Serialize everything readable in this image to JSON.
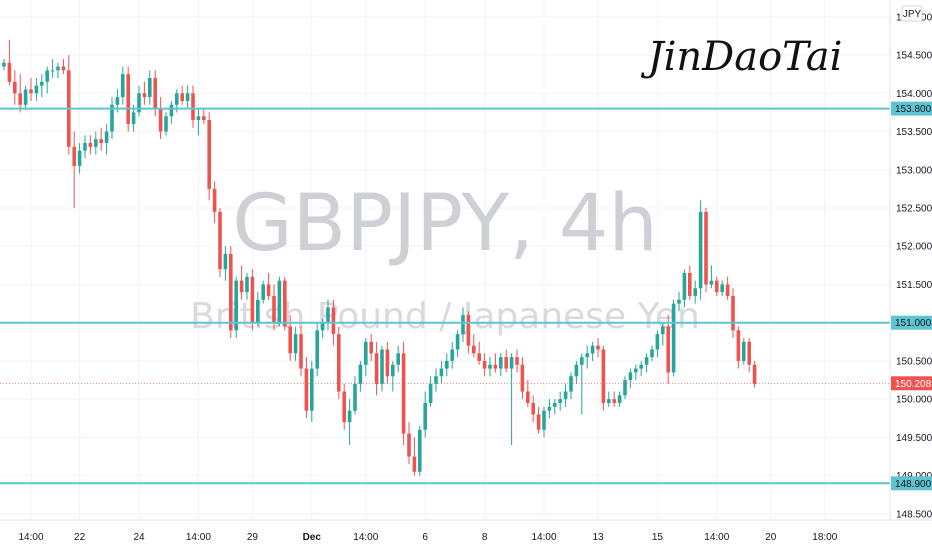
{
  "watermark": {
    "symbol": "GBPJPY, 4h",
    "description": "British Pound / Japanese Yen"
  },
  "signature": "JinDaoTai",
  "currency_label": "JPY",
  "colors": {
    "up": "#26a69a",
    "down": "#ef5350",
    "level": "#5ec4cf",
    "last_price": "#ef5350"
  },
  "chart_data": {
    "type": "candlestick",
    "symbol": "GBPJPY",
    "timeframe": "4h",
    "ylim": [
      148.42,
      155.22
    ],
    "y_ticks": [
      "155.000",
      "154.500",
      "154.000",
      "153.500",
      "153.000",
      "152.500",
      "152.000",
      "151.500",
      "150.500",
      "150.000",
      "149.500",
      "149.000",
      "148.500"
    ],
    "x_ticks": [
      "14:00",
      "22",
      "24",
      "14:00",
      "29",
      "Dec",
      "14:00",
      "6",
      "8",
      "14:00",
      "13",
      "15",
      "14:00",
      "20",
      "18:00"
    ],
    "x_tick_index": [
      5,
      14,
      25,
      36,
      46,
      57,
      67,
      78,
      89,
      100,
      110,
      121,
      132,
      142,
      152
    ],
    "bold_x_ticks": [
      "Dec"
    ],
    "grid": true,
    "levels": [
      {
        "price": 153.8,
        "label": "153.800"
      },
      {
        "price": 151.0,
        "label": "151.000"
      },
      {
        "price": 148.9,
        "label": "148.900"
      }
    ],
    "last_price": {
      "value": 150.208,
      "label": "150.208"
    },
    "candles": [
      [
        154.35,
        154.45,
        154.3,
        154.4
      ],
      [
        154.4,
        154.7,
        154.1,
        154.15
      ],
      [
        154.15,
        154.3,
        153.85,
        154.0
      ],
      [
        154.0,
        154.25,
        153.75,
        153.85
      ],
      [
        153.85,
        154.1,
        153.78,
        154.05
      ],
      [
        154.05,
        154.2,
        153.9,
        154.0
      ],
      [
        154.0,
        154.2,
        153.9,
        154.1
      ],
      [
        154.1,
        154.25,
        153.95,
        154.15
      ],
      [
        154.15,
        154.35,
        154.0,
        154.3
      ],
      [
        154.3,
        154.45,
        154.2,
        154.3
      ],
      [
        154.3,
        154.4,
        154.2,
        154.35
      ],
      [
        154.35,
        154.45,
        154.25,
        154.3
      ],
      [
        154.3,
        154.5,
        153.2,
        153.3
      ],
      [
        153.3,
        153.5,
        152.5,
        153.05
      ],
      [
        153.05,
        153.35,
        152.95,
        153.25
      ],
      [
        153.25,
        153.45,
        153.15,
        153.35
      ],
      [
        153.35,
        153.45,
        153.2,
        153.3
      ],
      [
        153.3,
        153.5,
        153.2,
        153.4
      ],
      [
        153.4,
        153.55,
        153.25,
        153.35
      ],
      [
        153.35,
        153.6,
        153.2,
        153.5
      ],
      [
        153.5,
        153.95,
        153.4,
        153.85
      ],
      [
        153.85,
        154.05,
        153.75,
        153.95
      ],
      [
        153.95,
        154.35,
        153.85,
        154.25
      ],
      [
        154.25,
        154.35,
        153.5,
        153.6
      ],
      [
        153.6,
        153.85,
        153.5,
        153.75
      ],
      [
        153.75,
        154.1,
        153.7,
        154.0
      ],
      [
        154.0,
        154.15,
        153.85,
        153.95
      ],
      [
        153.95,
        154.3,
        153.85,
        154.2
      ],
      [
        154.2,
        154.3,
        153.7,
        153.8
      ],
      [
        153.8,
        153.95,
        153.4,
        153.5
      ],
      [
        153.5,
        153.75,
        153.45,
        153.7
      ],
      [
        153.7,
        153.9,
        153.6,
        153.85
      ],
      [
        153.85,
        154.05,
        153.75,
        154.0
      ],
      [
        154.0,
        154.1,
        153.85,
        153.9
      ],
      [
        153.9,
        154.1,
        153.8,
        154.0
      ],
      [
        154.0,
        154.1,
        153.55,
        153.65
      ],
      [
        153.65,
        153.8,
        153.45,
        153.7
      ],
      [
        153.7,
        153.8,
        153.6,
        153.65
      ],
      [
        153.65,
        153.75,
        152.6,
        152.75
      ],
      [
        152.75,
        152.85,
        152.3,
        152.45
      ],
      [
        152.45,
        152.5,
        151.6,
        151.7
      ],
      [
        151.7,
        152.0,
        151.55,
        151.9
      ],
      [
        151.9,
        152.0,
        150.8,
        150.9
      ],
      [
        150.9,
        151.6,
        150.8,
        151.55
      ],
      [
        151.55,
        151.75,
        151.3,
        151.4
      ],
      [
        151.4,
        151.65,
        151.3,
        151.6
      ],
      [
        151.6,
        151.7,
        150.9,
        151.0
      ],
      [
        151.0,
        151.4,
        150.95,
        151.3
      ],
      [
        151.3,
        151.55,
        151.25,
        151.5
      ],
      [
        151.5,
        151.65,
        151.3,
        151.35
      ],
      [
        151.35,
        151.5,
        150.9,
        151.0
      ],
      [
        151.0,
        151.6,
        150.95,
        151.55
      ],
      [
        151.55,
        151.6,
        150.9,
        150.95
      ],
      [
        150.95,
        151.1,
        150.5,
        150.6
      ],
      [
        150.6,
        150.95,
        150.5,
        150.85
      ],
      [
        150.85,
        150.95,
        150.3,
        150.4
      ],
      [
        150.4,
        150.55,
        149.75,
        149.85
      ],
      [
        149.85,
        150.5,
        149.7,
        150.4
      ],
      [
        150.4,
        151.0,
        150.3,
        150.9
      ],
      [
        150.9,
        151.05,
        150.8,
        151.0
      ],
      [
        151.0,
        151.3,
        150.9,
        151.2
      ],
      [
        151.2,
        151.3,
        150.7,
        150.85
      ],
      [
        150.85,
        150.95,
        150.0,
        150.1
      ],
      [
        150.1,
        150.2,
        149.6,
        149.7
      ],
      [
        149.7,
        150.0,
        149.4,
        149.85
      ],
      [
        149.85,
        150.3,
        149.8,
        150.2
      ],
      [
        150.2,
        150.5,
        150.1,
        150.45
      ],
      [
        150.45,
        150.8,
        150.3,
        150.75
      ],
      [
        150.75,
        150.85,
        150.5,
        150.6
      ],
      [
        150.6,
        150.75,
        150.05,
        150.2
      ],
      [
        150.2,
        150.7,
        150.1,
        150.65
      ],
      [
        150.65,
        150.75,
        150.2,
        150.3
      ],
      [
        150.3,
        150.5,
        150.1,
        150.45
      ],
      [
        150.45,
        150.7,
        150.35,
        150.6
      ],
      [
        150.6,
        150.75,
        149.4,
        149.55
      ],
      [
        149.55,
        149.7,
        149.15,
        149.25
      ],
      [
        149.25,
        149.5,
        149.0,
        149.05
      ],
      [
        149.05,
        149.65,
        149.0,
        149.6
      ],
      [
        149.6,
        150.1,
        149.5,
        149.95
      ],
      [
        149.95,
        150.3,
        149.9,
        150.2
      ],
      [
        150.2,
        150.4,
        150.1,
        150.3
      ],
      [
        150.3,
        150.5,
        150.2,
        150.4
      ],
      [
        150.4,
        150.6,
        150.3,
        150.5
      ],
      [
        150.5,
        150.75,
        150.4,
        150.65
      ],
      [
        150.65,
        150.9,
        150.55,
        150.85
      ],
      [
        150.85,
        151.2,
        150.75,
        151.1
      ],
      [
        151.1,
        151.15,
        150.6,
        150.7
      ],
      [
        150.7,
        150.85,
        150.55,
        150.6
      ],
      [
        150.6,
        150.75,
        150.45,
        150.5
      ],
      [
        150.5,
        150.6,
        150.3,
        150.4
      ],
      [
        150.4,
        150.55,
        150.3,
        150.45
      ],
      [
        150.45,
        150.6,
        150.35,
        150.4
      ],
      [
        150.4,
        150.6,
        150.3,
        150.55
      ],
      [
        150.55,
        150.65,
        150.35,
        150.4
      ],
      [
        150.4,
        150.6,
        149.4,
        150.55
      ],
      [
        150.55,
        150.65,
        150.35,
        150.45
      ],
      [
        150.45,
        150.55,
        150.0,
        150.1
      ],
      [
        150.1,
        150.25,
        149.9,
        149.95
      ],
      [
        149.95,
        150.05,
        149.7,
        149.8
      ],
      [
        149.8,
        149.9,
        149.55,
        149.6
      ],
      [
        149.6,
        149.9,
        149.5,
        149.85
      ],
      [
        149.85,
        150.0,
        149.75,
        149.9
      ],
      [
        149.9,
        150.0,
        149.8,
        149.95
      ],
      [
        149.95,
        150.1,
        149.85,
        150.0
      ],
      [
        150.0,
        150.2,
        149.9,
        150.1
      ],
      [
        150.1,
        150.35,
        150.0,
        150.3
      ],
      [
        150.3,
        150.5,
        150.2,
        150.45
      ],
      [
        150.45,
        150.6,
        149.8,
        150.55
      ],
      [
        150.55,
        150.7,
        150.4,
        150.6
      ],
      [
        150.6,
        150.75,
        150.5,
        150.7
      ],
      [
        150.7,
        150.8,
        150.55,
        150.65
      ],
      [
        150.65,
        150.7,
        149.85,
        149.95
      ],
      [
        149.95,
        150.1,
        149.9,
        150.0
      ],
      [
        150.0,
        150.1,
        149.9,
        149.95
      ],
      [
        149.95,
        150.1,
        149.9,
        150.05
      ],
      [
        150.05,
        150.3,
        150.0,
        150.25
      ],
      [
        150.25,
        150.4,
        150.15,
        150.35
      ],
      [
        150.35,
        150.45,
        150.25,
        150.4
      ],
      [
        150.4,
        150.5,
        150.3,
        150.45
      ],
      [
        150.45,
        150.6,
        150.35,
        150.55
      ],
      [
        150.55,
        150.7,
        150.5,
        150.65
      ],
      [
        150.65,
        150.9,
        150.55,
        150.85
      ],
      [
        150.85,
        151.0,
        150.7,
        150.95
      ],
      [
        150.95,
        151.1,
        150.2,
        150.35
      ],
      [
        150.35,
        151.3,
        150.3,
        151.25
      ],
      [
        151.25,
        151.4,
        151.15,
        151.3
      ],
      [
        151.3,
        151.7,
        151.2,
        151.65
      ],
      [
        151.65,
        151.75,
        151.3,
        151.35
      ],
      [
        151.35,
        151.55,
        151.25,
        151.45
      ],
      [
        151.45,
        152.6,
        151.3,
        152.45
      ],
      [
        152.45,
        152.5,
        151.4,
        151.5
      ],
      [
        151.5,
        151.75,
        151.45,
        151.55
      ],
      [
        151.55,
        151.6,
        151.35,
        151.4
      ],
      [
        151.4,
        151.55,
        151.35,
        151.5
      ],
      [
        151.5,
        151.6,
        151.3,
        151.35
      ],
      [
        151.35,
        151.45,
        150.8,
        150.9
      ],
      [
        150.9,
        150.95,
        150.4,
        150.5
      ],
      [
        150.5,
        150.8,
        150.45,
        150.75
      ],
      [
        150.75,
        150.8,
        150.35,
        150.45
      ],
      [
        150.45,
        150.5,
        150.15,
        150.2
      ]
    ]
  }
}
